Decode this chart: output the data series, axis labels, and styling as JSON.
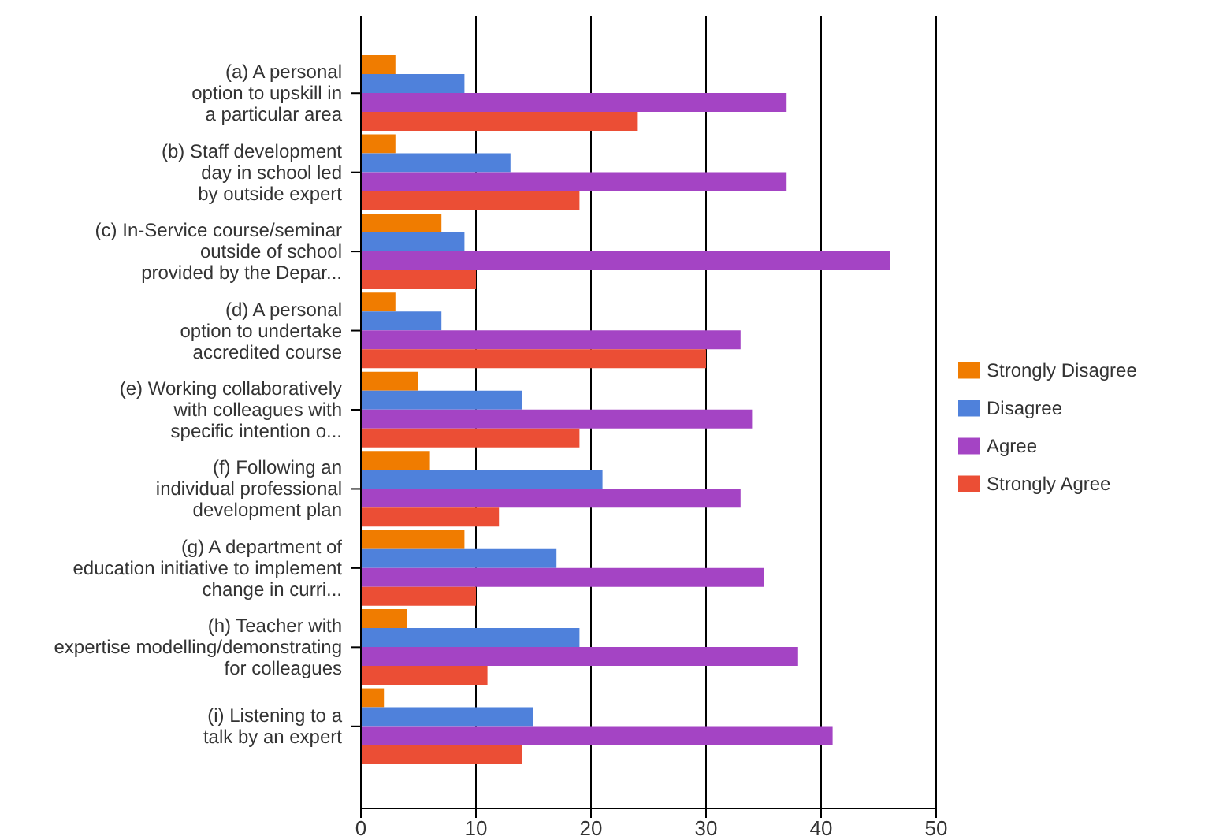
{
  "chart_data": {
    "type": "bar",
    "orientation": "horizontal",
    "categories": [
      "(a) A personal\noption to upskill in\na particular area",
      "(b) Staff development\nday in school led\nby outside expert",
      "(c) In-Service course/seminar\noutside of school\nprovided by the Depar...",
      "(d) A personal\noption to undertake\naccredited course",
      "(e) Working collaboratively\nwith colleagues with\nspecific intention o...",
      "(f) Following an\nindividual professional\ndevelopment plan",
      "(g) A department of\neducation initiative to implement\nchange in curri...",
      "(h) Teacher with\nexpertise modelling/demonstrating\nfor colleagues",
      "(i) Listening to a\ntalk by an expert"
    ],
    "series": [
      {
        "name": "Strongly Disagree",
        "color": "#f07c00",
        "values": [
          3,
          3,
          7,
          3,
          5,
          6,
          9,
          4,
          2
        ]
      },
      {
        "name": "Disagree",
        "color": "#4f81db",
        "values": [
          9,
          13,
          9,
          7,
          14,
          21,
          17,
          19,
          15
        ]
      },
      {
        "name": "Agree",
        "color": "#a444c4",
        "values": [
          37,
          37,
          46,
          33,
          34,
          33,
          35,
          38,
          41
        ]
      },
      {
        "name": "Strongly Agree",
        "color": "#eb4e35",
        "values": [
          24,
          19,
          10,
          30,
          19,
          12,
          10,
          11,
          14
        ]
      }
    ],
    "xlim": [
      0,
      50
    ],
    "xticks": [
      0,
      10,
      20,
      30,
      40,
      50
    ],
    "grid": "x",
    "legend": "right"
  }
}
